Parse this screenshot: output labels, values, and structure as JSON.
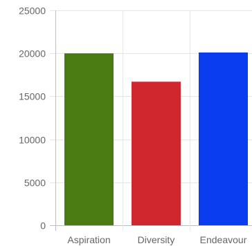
{
  "chart_data": {
    "type": "bar",
    "categories": [
      "Aspiration",
      "Diversity",
      "Endeavour"
    ],
    "values": [
      20000,
      16700,
      20100
    ],
    "colors": [
      "#4a7a12",
      "#d0262e",
      "#0a3cf0"
    ],
    "ylim": [
      0,
      25000
    ],
    "yticks": [
      0,
      5000,
      10000,
      15000,
      20000,
      25000
    ],
    "ytick_labels": [
      "0",
      "5000",
      "10000",
      "15000",
      "20000",
      "25000"
    ],
    "grid": true,
    "title": "",
    "xlabel": "",
    "ylabel": ""
  }
}
